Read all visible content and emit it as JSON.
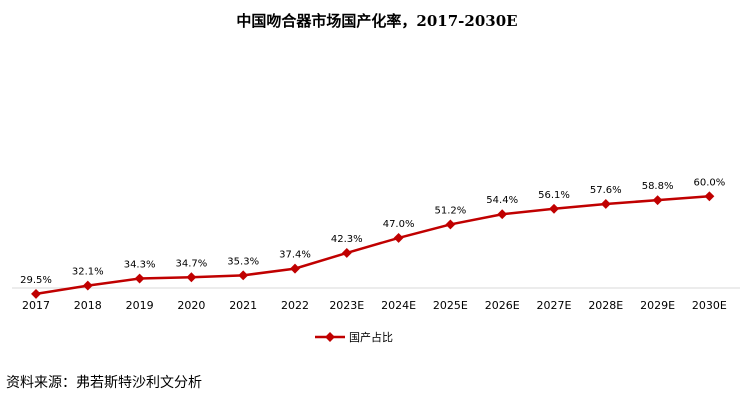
{
  "title": "中国吻合器市场国产化率，2017-2030E",
  "source": "资料来源：弗若斯特沙利文分析",
  "chart_data": {
    "type": "line",
    "categories": [
      "2017",
      "2018",
      "2019",
      "2020",
      "2021",
      "2022",
      "2023E",
      "2024E",
      "2025E",
      "2026E",
      "2027E",
      "2028E",
      "2029E",
      "2030E"
    ],
    "series": [
      {
        "name": "国产占比",
        "values": [
          29.5,
          32.1,
          34.3,
          34.7,
          35.3,
          37.4,
          42.3,
          47.0,
          51.2,
          54.4,
          56.1,
          57.6,
          58.8,
          60.0
        ],
        "labels": [
          "29.5%",
          "32.1%",
          "34.3%",
          "34.7%",
          "35.3%",
          "37.4%",
          "42.3%",
          "47.0%",
          "51.2%",
          "54.4%",
          "56.1%",
          "57.6%",
          "58.8%",
          "60.0%"
        ],
        "color": "#c00000"
      }
    ],
    "legend": "bottom-center",
    "grid": false
  }
}
